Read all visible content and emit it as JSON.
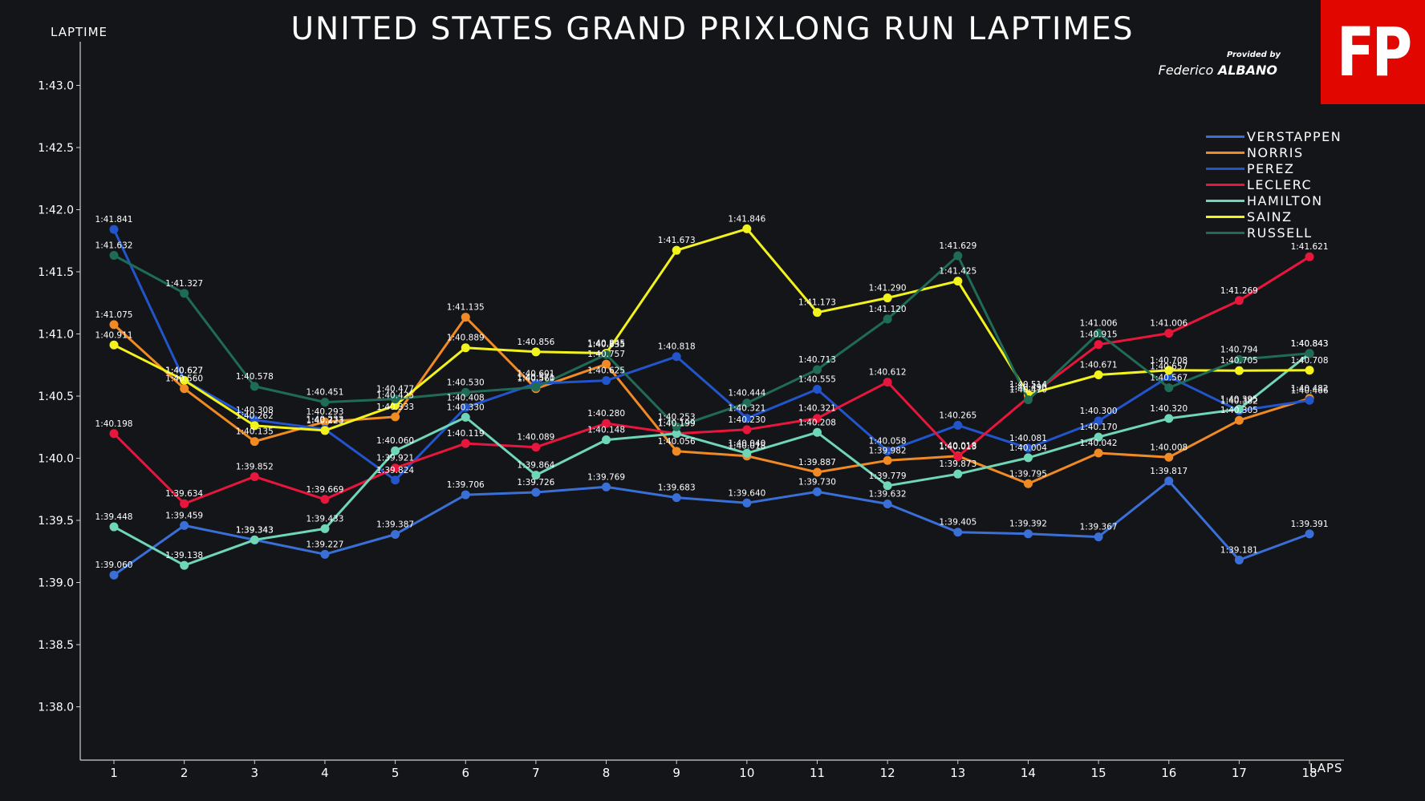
{
  "header": {
    "title": "UNITED STATES GRAND PRIXLONG RUN LAPTIMES",
    "logo_text": "FP",
    "provided_by": "Provided by",
    "author_first": "Federico",
    "author_last": "ALBANO"
  },
  "chart_data": {
    "type": "line",
    "title": "UNITED STATES GRAND PRIXLONG RUN LAPTIMES",
    "xlabel": "LAPS",
    "ylabel": "LAPTIME",
    "x": [
      1,
      2,
      3,
      4,
      5,
      6,
      7,
      8,
      9,
      10,
      11,
      12,
      13,
      14,
      15,
      16,
      17,
      18
    ],
    "y_ticks": [
      "1:38.0",
      "1:38.5",
      "1:39.0",
      "1:39.5",
      "1:40.0",
      "1:40.5",
      "1:41.0",
      "1:41.5",
      "1:42.0",
      "1:42.5",
      "1:43.0"
    ],
    "ylim": [
      97.6,
      103.3
    ],
    "grid": false,
    "legend_position": "top-right",
    "data_labels": true,
    "series": [
      {
        "name": "VERSTAPPEN",
        "color": "#3a6fd8",
        "values": [
          99.06,
          99.459,
          99.343,
          99.227,
          99.387,
          99.706,
          99.726,
          99.769,
          99.683,
          99.64,
          99.73,
          99.632,
          99.405,
          99.392,
          99.367,
          99.817,
          99.181,
          99.391
        ]
      },
      {
        "name": "NORRIS",
        "color": "#f08a24",
        "values": [
          101.075,
          100.56,
          100.135,
          100.293,
          100.333,
          101.135,
          100.56,
          100.757,
          100.056,
          100.018,
          99.887,
          99.982,
          100.018,
          99.795,
          100.042,
          100.008,
          100.305,
          100.482
        ]
      },
      {
        "name": "PEREZ",
        "color": "#2255cc",
        "values": [
          101.841,
          100.627,
          100.308,
          100.233,
          99.824,
          100.408,
          100.601,
          100.625,
          100.818,
          100.321,
          100.555,
          100.058,
          100.265,
          100.081,
          100.3,
          100.657,
          100.382,
          100.466
        ]
      },
      {
        "name": "LECLERC",
        "color": "#e8163c",
        "values": [
          100.198,
          99.634,
          99.852,
          99.669,
          99.921,
          100.119,
          100.089,
          100.28,
          100.199,
          100.23,
          100.321,
          100.612,
          100.013,
          100.49,
          100.915,
          101.006,
          101.269,
          101.621
        ]
      },
      {
        "name": "HAMILTON",
        "color": "#6fd6b8",
        "values": [
          99.448,
          99.138,
          99.343,
          99.433,
          100.06,
          100.33,
          99.864,
          100.148,
          100.199,
          100.04,
          100.208,
          99.779,
          99.873,
          100.004,
          100.17,
          100.32,
          100.395,
          100.843
        ]
      },
      {
        "name": "SAINZ",
        "color": "#f2f21c",
        "values": [
          100.911,
          100.627,
          100.262,
          100.223,
          100.425,
          100.889,
          100.856,
          100.845,
          101.673,
          101.846,
          101.173,
          101.29,
          101.425,
          100.514,
          100.671,
          100.708,
          100.705,
          100.708
        ]
      },
      {
        "name": "RUSSELL",
        "color": "#1f6b55",
        "values": [
          101.632,
          101.327,
          100.578,
          100.451,
          100.477,
          100.53,
          100.571,
          100.835,
          100.253,
          100.444,
          100.713,
          101.12,
          101.629,
          100.47,
          101.006,
          100.567,
          100.794,
          100.843
        ]
      }
    ]
  }
}
